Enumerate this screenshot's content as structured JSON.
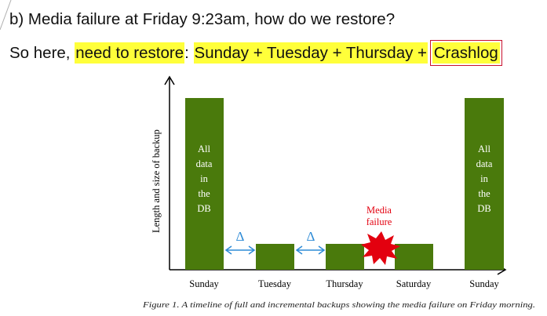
{
  "heading": {
    "question": "b) Media failure at Friday 9:23am, how do we restore?",
    "prefix": "So here, ",
    "highlight_need": "need to restore",
    "colon": ":",
    "space": " ",
    "restore_sequence": "Sunday + Tuesday + Thursday +",
    "crashlog": "Crashlog"
  },
  "diagram": {
    "y_axis_label": "Length and size of backup",
    "bar_color": "#4a7a0c",
    "arrow_color": "#2e8bd6",
    "failure_color": "#e3000f",
    "full_backup_text": [
      "All",
      "data",
      "in",
      "the",
      "DB"
    ],
    "delta_symbol": "Δ",
    "media_failure_lines": [
      "Media",
      "failure"
    ],
    "days": [
      "Sunday",
      "Tuesday",
      "Thursday",
      "Saturday",
      "Sunday"
    ],
    "caption": "Figure 1. A timeline of full and incremental backups showing the media failure on Friday morning."
  }
}
